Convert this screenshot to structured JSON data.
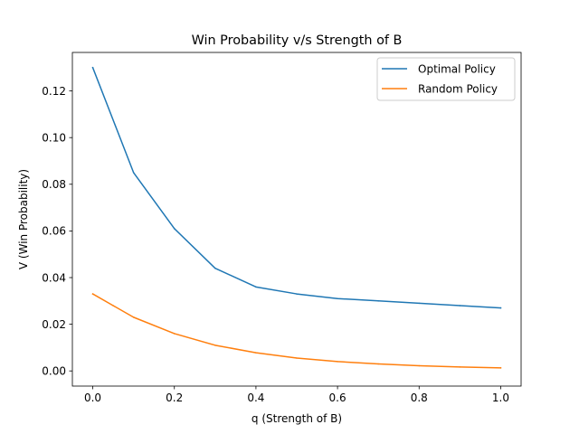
{
  "chart_data": {
    "type": "line",
    "title": "Win Probability v/s Strength of B",
    "xlabel": "q (Strength of B)",
    "ylabel": "V (Win Probability)",
    "xlim": [
      -0.05,
      1.05
    ],
    "ylim": [
      -0.0065,
      0.1365
    ],
    "xticks": [
      0.0,
      0.2,
      0.4,
      0.6,
      0.8,
      1.0
    ],
    "xtick_labels": [
      "0.0",
      "0.2",
      "0.4",
      "0.6",
      "0.8",
      "1.0"
    ],
    "yticks": [
      0.0,
      0.02,
      0.04,
      0.06,
      0.08,
      0.1,
      0.12
    ],
    "ytick_labels": [
      "0.00",
      "0.02",
      "0.04",
      "0.06",
      "0.08",
      "0.10",
      "0.12"
    ],
    "grid": false,
    "legend_position": "top-right",
    "series": [
      {
        "name": "Optimal Policy",
        "color": "#1f77b4",
        "x": [
          0.0,
          0.1,
          0.2,
          0.3,
          0.4,
          0.5,
          0.6,
          0.7,
          0.8,
          0.9,
          1.0
        ],
        "y": [
          0.13,
          0.085,
          0.061,
          0.044,
          0.036,
          0.033,
          0.031,
          0.03,
          0.029,
          0.028,
          0.027
        ]
      },
      {
        "name": "Random Policy",
        "color": "#ff7f0e",
        "x": [
          0.0,
          0.05,
          0.1,
          0.2,
          0.3,
          0.4,
          0.5,
          0.6,
          0.7,
          0.8,
          0.9,
          1.0
        ],
        "y": [
          0.033,
          0.028,
          0.023,
          0.016,
          0.011,
          0.0078,
          0.0055,
          0.004,
          0.003,
          0.0022,
          0.0017,
          0.0013
        ]
      }
    ]
  }
}
